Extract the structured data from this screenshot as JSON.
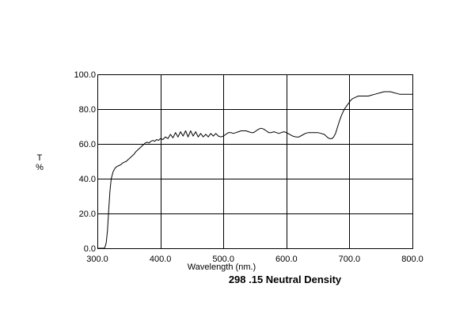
{
  "chart_data": {
    "type": "line",
    "title": "298 .15 Neutral Density",
    "xlabel": "Wavelength (nm.)",
    "ylabel_lines": [
      "T",
      "%"
    ],
    "xlim": [
      300,
      800
    ],
    "ylim": [
      0,
      100
    ],
    "x_ticks": [
      "300.0",
      "400.0",
      "500.0",
      "600.0",
      "700.0",
      "800.0"
    ],
    "y_ticks": [
      "0.0",
      "20.0",
      "40.0",
      "60.0",
      "80.0",
      "100.0"
    ],
    "grid": true,
    "line_color": "#000000",
    "series": [
      {
        "x": [
          300,
          305,
          310,
          312,
          314,
          316,
          318,
          320,
          322,
          325,
          328,
          331,
          334,
          337,
          340,
          343,
          346,
          349,
          352,
          355,
          358,
          361,
          364,
          367,
          370,
          373,
          376,
          379,
          382,
          385,
          388,
          391,
          394,
          397,
          400,
          404,
          408,
          412,
          416,
          420,
          424,
          428,
          432,
          436,
          440,
          444,
          448,
          452,
          456,
          460,
          464,
          468,
          472,
          476,
          480,
          484,
          488,
          492,
          496,
          500,
          504,
          508,
          512,
          516,
          520,
          524,
          528,
          532,
          536,
          540,
          544,
          548,
          552,
          556,
          560,
          564,
          568,
          572,
          576,
          580,
          584,
          588,
          592,
          596,
          600,
          605,
          610,
          615,
          620,
          625,
          630,
          635,
          640,
          645,
          650,
          655,
          660,
          663,
          666,
          669,
          672,
          675,
          678,
          681,
          684,
          687,
          690,
          693,
          696,
          699,
          702,
          705,
          708,
          711,
          714,
          717,
          720,
          725,
          730,
          735,
          740,
          745,
          750,
          755,
          760,
          765,
          770,
          775,
          780,
          785,
          790,
          795,
          800
        ],
        "y": [
          0.0,
          0.0,
          0.0,
          0.5,
          3,
          10,
          22,
          33,
          40,
          44,
          46,
          47,
          47.5,
          48,
          49,
          49.5,
          50,
          51,
          52,
          53,
          54,
          55.5,
          56.5,
          57.5,
          58.5,
          59.5,
          60.5,
          61,
          60.5,
          61.5,
          62,
          61.5,
          62.5,
          62,
          63,
          62.5,
          64,
          63,
          65.5,
          63.5,
          66.5,
          64,
          67,
          64.5,
          67.5,
          64,
          67.5,
          64.5,
          67,
          64,
          66,
          64,
          65.5,
          64,
          66,
          64.5,
          66,
          64.5,
          64,
          64.5,
          65.5,
          66.5,
          66.5,
          66,
          66.5,
          67,
          67.5,
          67.5,
          67.5,
          67,
          66.5,
          66.5,
          67.5,
          68.5,
          69,
          68.5,
          67.5,
          66.5,
          66.5,
          67,
          66.5,
          66,
          66.5,
          67,
          66.5,
          65.5,
          64.5,
          64,
          64,
          65,
          66,
          66.5,
          66.5,
          66.5,
          66.5,
          66,
          65.5,
          64.5,
          63.5,
          63,
          63,
          64,
          66,
          69.5,
          73,
          76,
          78.5,
          80.5,
          82,
          83.5,
          85,
          86,
          86.5,
          87,
          87.5,
          87.5,
          87.5,
          87.5,
          87.5,
          88,
          88.5,
          89,
          89.5,
          90,
          90,
          90,
          89.5,
          89,
          88.5,
          88.5,
          88.5,
          88.5,
          88.5
        ]
      }
    ]
  }
}
